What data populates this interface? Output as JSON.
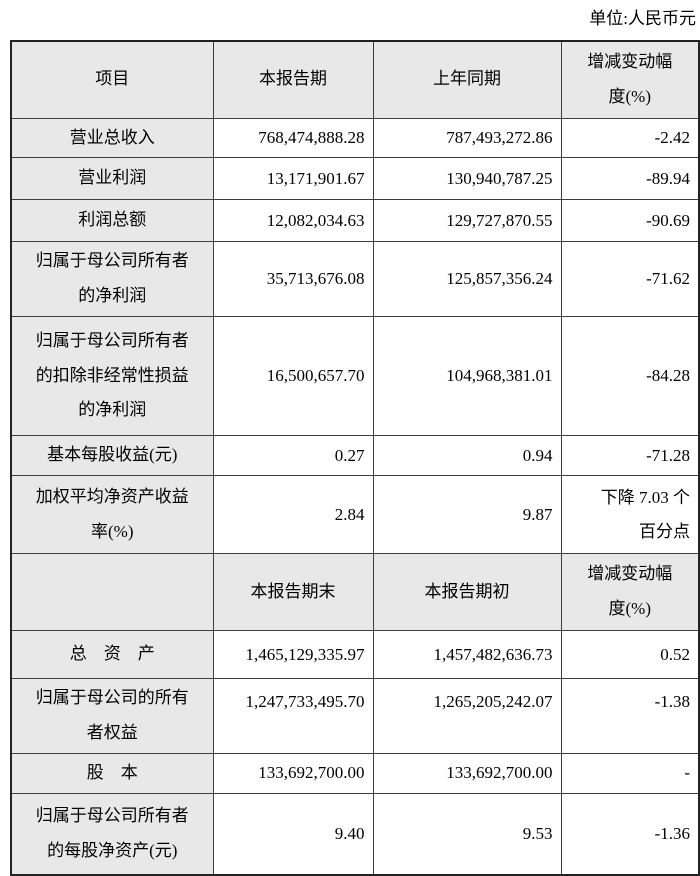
{
  "unit_label": "单位:人民币元",
  "colors": {
    "header_bg": "#e8e8e8",
    "border": "#3d3d3d",
    "outer_border": "#222222",
    "text": "#000000"
  },
  "sections": [
    {
      "header": {
        "col1": "项目",
        "col2": "本报告期",
        "col3": "上年同期",
        "col4": "增减变动幅\n度(%)"
      },
      "rows": [
        {
          "label": "营业总收入",
          "current": "768,474,888.28",
          "prior": "787,493,272.86",
          "change": "-2.42"
        },
        {
          "label": "营业利润",
          "current": "13,171,901.67",
          "prior": "130,940,787.25",
          "change": "-89.94"
        },
        {
          "label": "利润总额",
          "current": "12,082,034.63",
          "prior": "129,727,870.55",
          "change": "-90.69"
        },
        {
          "label": "归属于母公司所有者\n的净利润",
          "current": "35,713,676.08",
          "prior": "125,857,356.24",
          "change": "-71.62"
        },
        {
          "label": "归属于母公司所有者\n的扣除非经常性损益\n的净利润",
          "current": "16,500,657.70",
          "prior": "104,968,381.01",
          "change": "-84.28"
        },
        {
          "label": "基本每股收益(元)",
          "current": "0.27",
          "prior": "0.94",
          "change": "-71.28"
        },
        {
          "label": "加权平均净资产收益\n率(%)",
          "current": "2.84",
          "prior": "9.87",
          "change": "下降 7.03 个\n百分点"
        }
      ]
    },
    {
      "header": {
        "col1": "",
        "col2": "本报告期末",
        "col3": "本报告期初",
        "col4": "增减变动幅\n度(%)"
      },
      "rows": [
        {
          "label": "总　资　产",
          "current": "1,465,129,335.97",
          "prior": "1,457,482,636.73",
          "change": "0.52"
        },
        {
          "label": "归属于母公司的所有\n者权益",
          "current": "1,247,733,495.70",
          "prior": "1,265,205,242.07",
          "change": "-1.38"
        },
        {
          "label": "股　本",
          "current": "133,692,700.00",
          "prior": "133,692,700.00",
          "change": "-"
        },
        {
          "label": "归属于母公司所有者\n的每股净资产(元)",
          "current": "9.40",
          "prior": "9.53",
          "change": "-1.36"
        }
      ]
    }
  ]
}
